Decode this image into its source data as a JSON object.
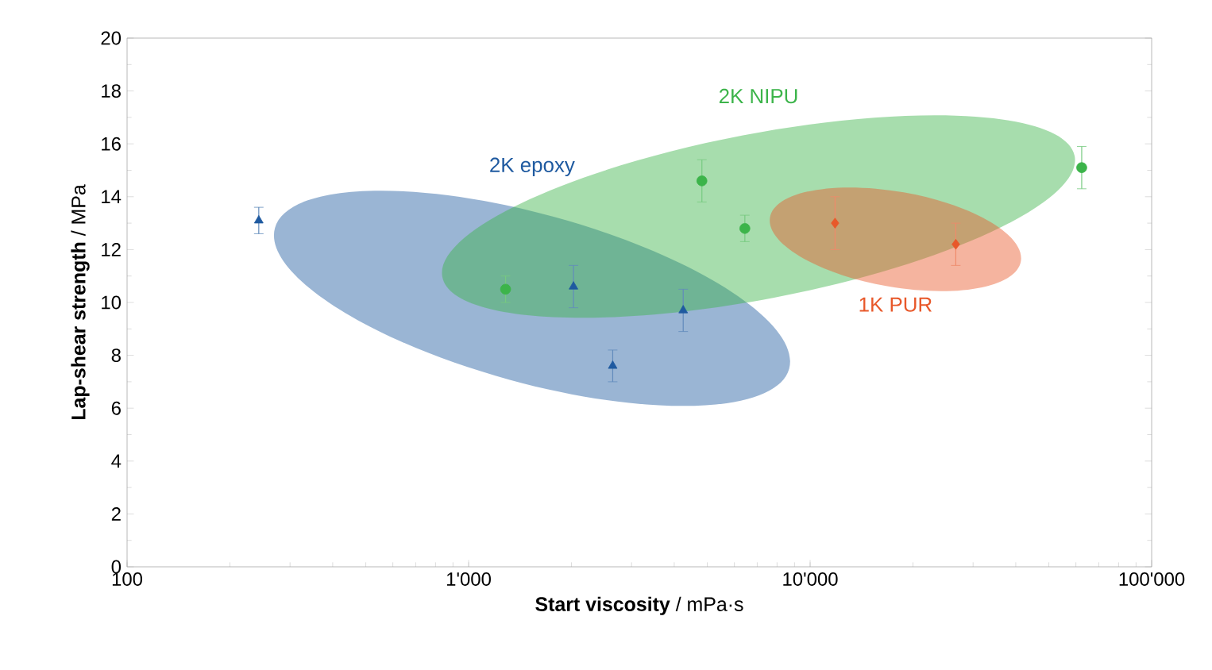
{
  "chart_data": {
    "type": "scatter",
    "xlabel": "**Start viscosity** / mPa·s",
    "ylabel": "**Lap-shear strength** / MPa",
    "log": "x",
    "xlim": [
      100,
      100000
    ],
    "xticks": [
      100,
      {
        "value": 1000,
        "label": "1'000"
      },
      {
        "value": 10000,
        "label": "10'000"
      },
      {
        "value": 100000,
        "label": "100'000"
      }
    ],
    "ylim": [
      0,
      20
    ],
    "yticks": [
      0,
      2,
      4,
      6,
      8,
      10,
      12,
      14,
      16,
      18,
      20
    ],
    "series": [
      {
        "name": "2K epoxy",
        "color": "#1f5aa0",
        "marker": "triangle",
        "x": [
          243,
          2028,
          2642,
          4250
        ],
        "values": [
          13.1,
          10.6,
          7.6,
          9.7
        ],
        "errors": [
          0.5,
          0.8,
          0.6,
          0.8
        ]
      },
      {
        "name": "2K NIPU",
        "color": "#3cb44a",
        "marker": "circle",
        "x": [
          1283,
          4820,
          6440,
          62400
        ],
        "values": [
          10.5,
          14.6,
          12.8,
          15.1
        ],
        "errors": [
          0.5,
          0.8,
          0.5,
          0.8
        ]
      },
      {
        "name": "1K PUR",
        "color": "#e8582a",
        "marker": "diamond",
        "x": [
          11830,
          26700
        ],
        "values": [
          13.0,
          12.2
        ],
        "errors": [
          1.0,
          0.8
        ]
      }
    ]
  }
}
